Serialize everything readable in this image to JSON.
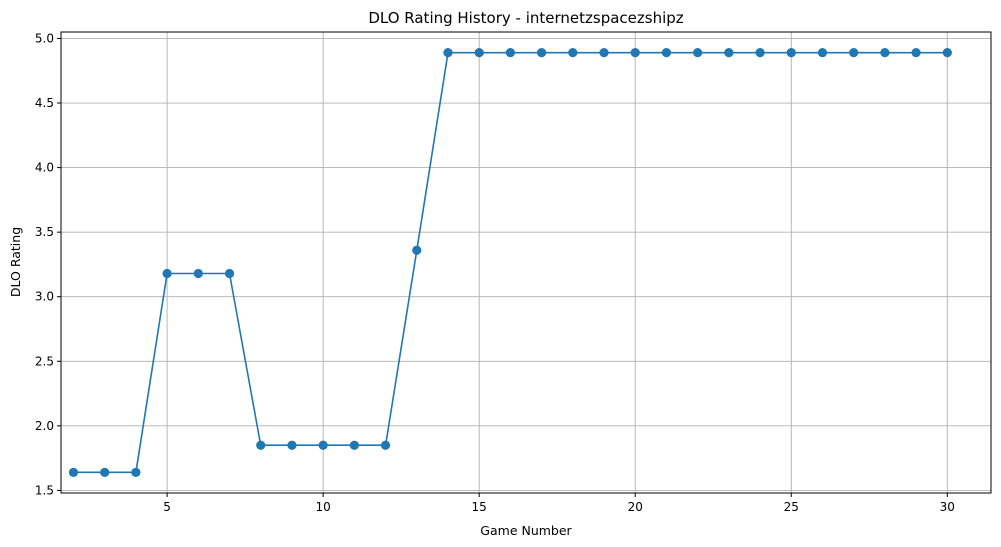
{
  "chart_data": {
    "type": "line",
    "title": "DLO Rating History - internetzspacezshipz",
    "xlabel": "Game Number",
    "ylabel": "DLO Rating",
    "xlim": [
      1.6,
      31.4
    ],
    "ylim": [
      1.48,
      5.05
    ],
    "xticks": [
      5,
      10,
      15,
      20,
      25,
      30
    ],
    "yticks": [
      1.5,
      2.0,
      2.5,
      3.0,
      3.5,
      4.0,
      4.5,
      5.0
    ],
    "xtick_labels": [
      "5",
      "10",
      "15",
      "20",
      "25",
      "30"
    ],
    "ytick_labels": [
      "1.5",
      "2.0",
      "2.5",
      "3.0",
      "3.5",
      "4.0",
      "4.5",
      "5.0"
    ],
    "grid": true,
    "color": "#1f77b4",
    "marker": "circle",
    "x": [
      2,
      3,
      4,
      5,
      6,
      7,
      8,
      9,
      10,
      11,
      12,
      13,
      14,
      15,
      16,
      17,
      18,
      19,
      20,
      21,
      22,
      23,
      24,
      25,
      26,
      27,
      28,
      29,
      30
    ],
    "y": [
      1.64,
      1.64,
      1.64,
      3.18,
      3.18,
      3.18,
      1.85,
      1.85,
      1.85,
      1.85,
      1.85,
      3.36,
      4.89,
      4.89,
      4.89,
      4.89,
      4.89,
      4.89,
      4.89,
      4.89,
      4.89,
      4.89,
      4.89,
      4.89,
      4.89,
      4.89,
      4.89,
      4.89,
      4.89
    ]
  }
}
